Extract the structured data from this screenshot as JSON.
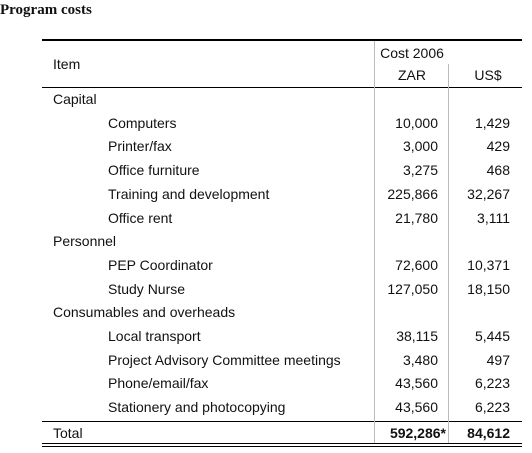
{
  "title": "Program costs",
  "table": {
    "header": {
      "item": "Item",
      "cost": "Cost 2006",
      "zar": "ZAR",
      "usd": "US$"
    },
    "sections": [
      {
        "name": "Capital",
        "rows": [
          [
            "Computers",
            "10,000",
            "1,429"
          ],
          [
            "Printer/fax",
            "3,000",
            "429"
          ],
          [
            "Office furniture",
            "3,275",
            "468"
          ],
          [
            "Training and development",
            "225,866",
            "32,267"
          ],
          [
            "Office rent",
            "21,780",
            "3,111"
          ]
        ]
      },
      {
        "name": "Personnel",
        "rows": [
          [
            "PEP Coordinator",
            "72,600",
            "10,371"
          ],
          [
            "Study Nurse",
            "127,050",
            "18,150"
          ]
        ]
      },
      {
        "name": "Consumables and overheads",
        "rows": [
          [
            "Local transport",
            "38,115",
            "5,445"
          ],
          [
            "Project Advisory Committee meetings",
            "3,480",
            "497"
          ],
          [
            "Phone/email/fax",
            "43,560",
            "6,223"
          ],
          [
            "Stationery and photocopying",
            "43,560",
            "6,223"
          ]
        ]
      }
    ],
    "total": [
      "Total",
      "592,286*",
      "84,612"
    ]
  }
}
